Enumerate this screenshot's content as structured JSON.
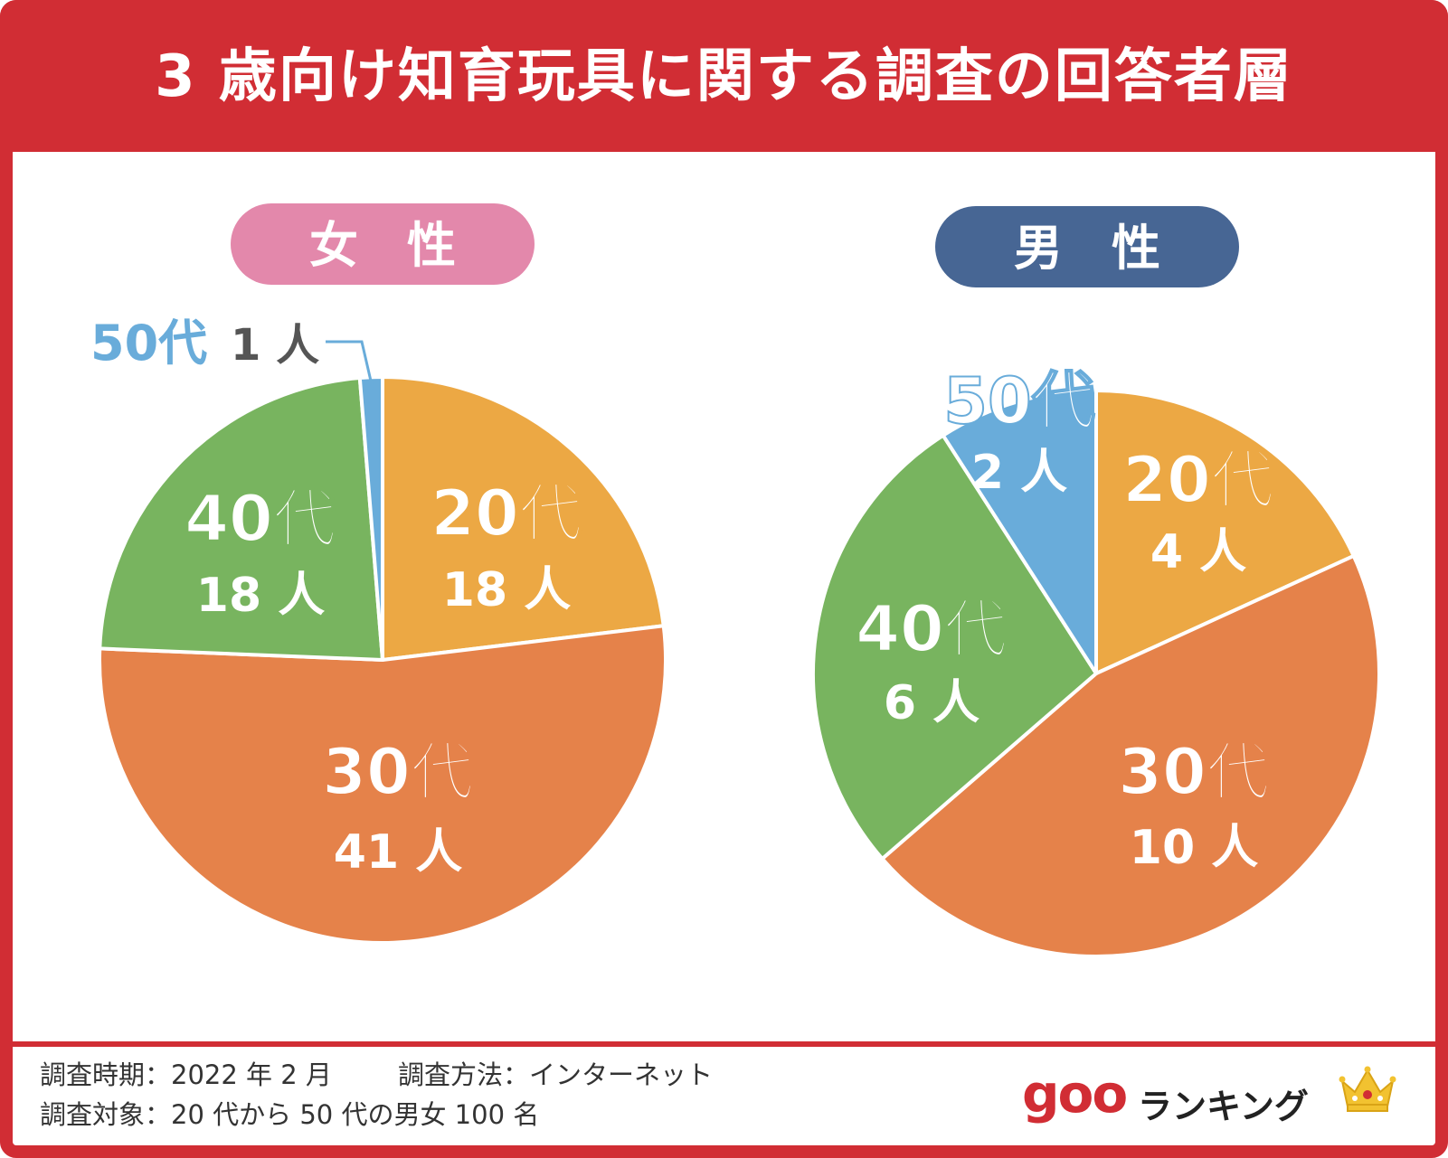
{
  "title": "3 歳向け知育玩具に関する調査の回答者層",
  "colors": {
    "frame": "#d12d34",
    "age20": "#eca844",
    "age30": "#e5824a",
    "age40": "#78b45f",
    "age50": "#69acda",
    "female_badge": "#e388ab",
    "male_badge": "#476694"
  },
  "chart_data": [
    {
      "type": "pie",
      "title": "女　性",
      "categories": [
        "20代",
        "30代",
        "40代",
        "50代"
      ],
      "values": [
        18,
        41,
        18,
        1
      ],
      "value_labels": [
        "18 人",
        "41 人",
        "18 人",
        "1 人"
      ]
    },
    {
      "type": "pie",
      "title": "男　性",
      "categories": [
        "20代",
        "30代",
        "40代",
        "50代"
      ],
      "values": [
        4,
        10,
        6,
        2
      ],
      "value_labels": [
        "4 人",
        "10 人",
        "6 人",
        "2 人"
      ]
    }
  ],
  "footer": {
    "period": "調査時期：2022 年 2 月",
    "method": "調査方法：インターネット",
    "target": "調査対象：20 代から 50 代の男女 100 名"
  },
  "logo": {
    "goo": "goo",
    "ranking": "ランキング",
    "icon": "crown-icon"
  }
}
